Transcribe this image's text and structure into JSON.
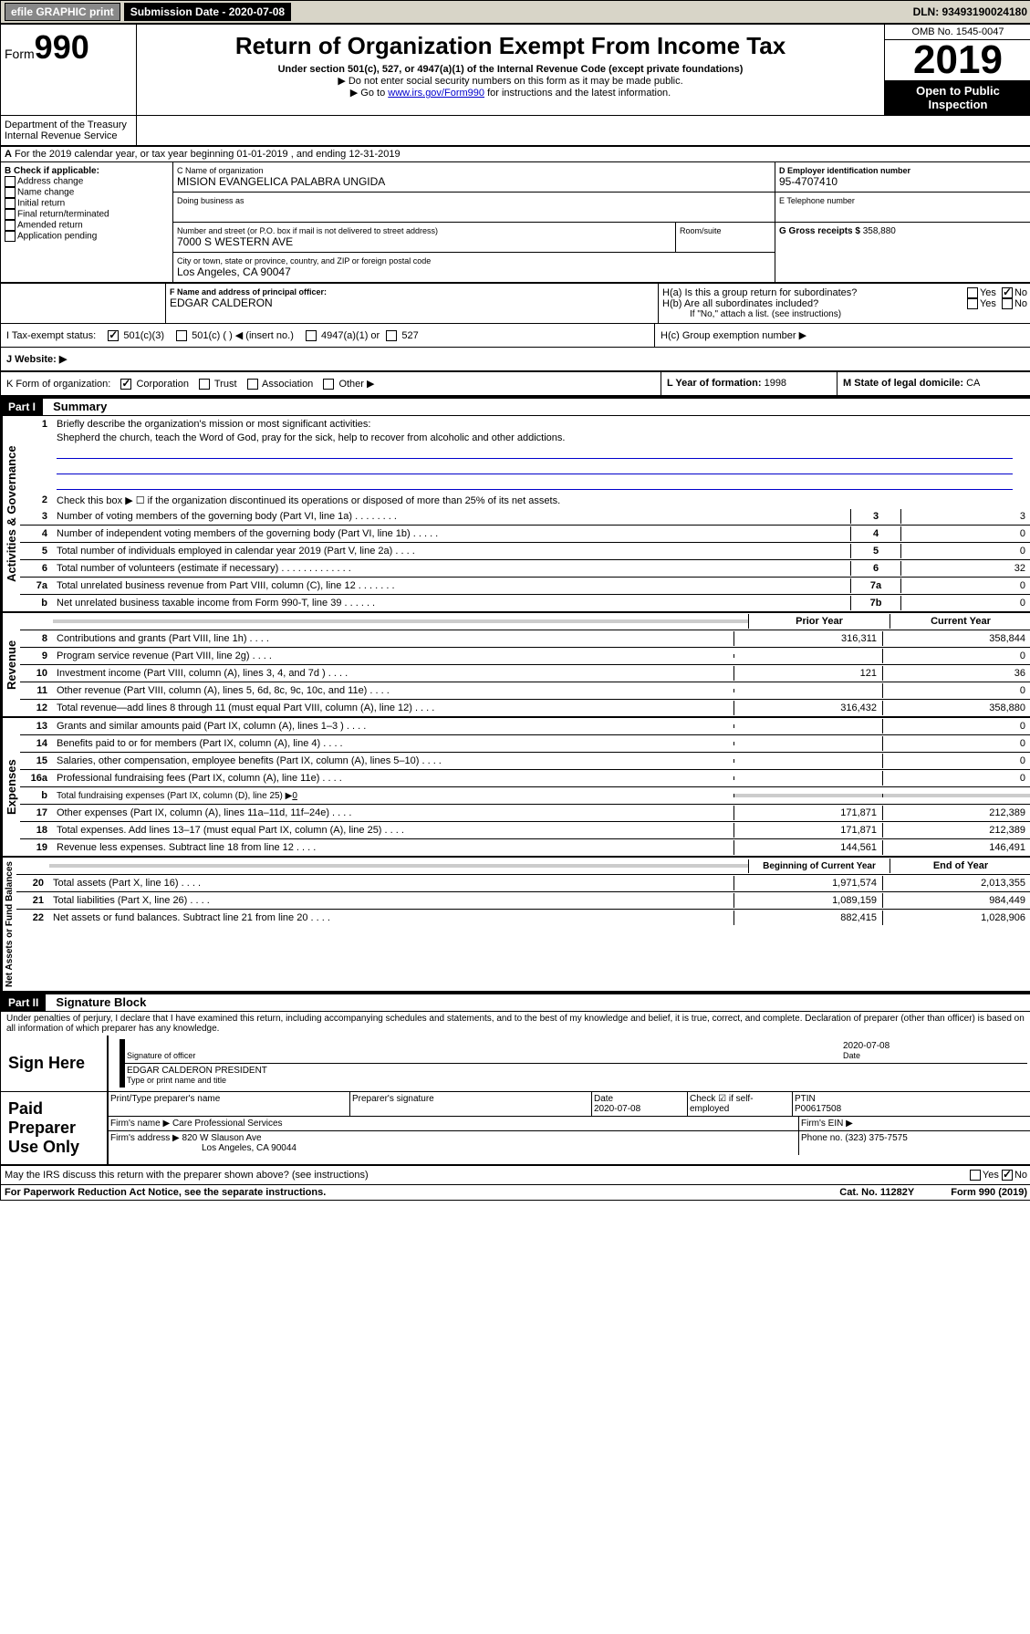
{
  "top": {
    "efile": "efile GRAPHIC print",
    "submission_label": "Submission Date - 2020-07-08",
    "dln": "DLN: 93493190024180"
  },
  "header": {
    "form_label": "Form",
    "form_num": "990",
    "title": "Return of Organization Exempt From Income Tax",
    "subtitle": "Under section 501(c), 527, or 4947(a)(1) of the Internal Revenue Code (except private foundations)",
    "note1": "▶ Do not enter social security numbers on this form as it may be made public.",
    "note2a": "▶ Go to ",
    "note2_link": "www.irs.gov/Form990",
    "note2b": " for instructions and the latest information.",
    "omb": "OMB No. 1545-0047",
    "year": "2019",
    "open": "Open to Public Inspection",
    "dept": "Department of the Treasury Internal Revenue Service"
  },
  "period": {
    "line": "For the 2019 calendar year, or tax year beginning 01-01-2019    , and ending 12-31-2019"
  },
  "boxB": {
    "label": "B Check if applicable:",
    "items": [
      "Address change",
      "Name change",
      "Initial return",
      "Final return/terminated",
      "Amended return",
      "Application pending"
    ]
  },
  "boxC": {
    "name_label": "C Name of organization",
    "name": "MISION EVANGELICA PALABRA UNGIDA",
    "dba_label": "Doing business as",
    "addr_label": "Number and street (or P.O. box if mail is not delivered to street address)",
    "room_label": "Room/suite",
    "addr": "7000 S WESTERN AVE",
    "city_label": "City or town, state or province, country, and ZIP or foreign postal code",
    "city": "Los Angeles, CA  90047"
  },
  "boxD": {
    "label": "D Employer identification number",
    "val": "95-4707410"
  },
  "boxE": {
    "label": "E Telephone number",
    "val": ""
  },
  "boxG": {
    "label": "G Gross receipts $",
    "val": "358,880"
  },
  "boxF": {
    "label": "F  Name and address of principal officer:",
    "val": "EDGAR CALDERON"
  },
  "boxH": {
    "a": "H(a)  Is this a group return for subordinates?",
    "b": "H(b)  Are all subordinates included?",
    "b_note": "If \"No,\" attach a list. (see instructions)",
    "c": "H(c)  Group exemption number ▶",
    "yes": "Yes",
    "no": "No"
  },
  "boxI": {
    "label": "I     Tax-exempt status:",
    "opts": [
      "501(c)(3)",
      "501(c) (  ) ◀ (insert no.)",
      "4947(a)(1) or",
      "527"
    ]
  },
  "boxJ": {
    "label": "J     Website: ▶"
  },
  "boxK": {
    "label": "K Form of organization:",
    "opts": [
      "Corporation",
      "Trust",
      "Association",
      "Other ▶"
    ]
  },
  "boxL": {
    "label": "L Year of formation:",
    "val": "1998"
  },
  "boxM": {
    "label": "M State of legal domicile:",
    "val": "CA"
  },
  "partI": {
    "header": "Part I",
    "title": "Summary"
  },
  "governance": {
    "label": "Activities & Governance",
    "l1": "Briefly describe the organization's mission or most significant activities:",
    "mission": "Shepherd the church, teach the Word of God, pray for the sick, help to recover from alcoholic and other addictions.",
    "l2": "Check this box ▶ ☐  if the organization discontinued its operations or disposed of more than 25% of its net assets.",
    "l3": "Number of voting members of the governing body (Part VI, line 1a)",
    "l4": "Number of independent voting members of the governing body (Part VI, line 1b)",
    "l5": "Total number of individuals employed in calendar year 2019 (Part V, line 2a)",
    "l6": "Total number of volunteers (estimate if necessary)",
    "l7a": "Total unrelated business revenue from Part VIII, column (C), line 12",
    "l7b": "Net unrelated business taxable income from Form 990-T, line 39",
    "v3": "3",
    "v4": "0",
    "v5": "0",
    "v6": "32",
    "v7a": "0",
    "v7b": "0"
  },
  "revenue": {
    "label": "Revenue",
    "prior": "Prior Year",
    "current": "Current Year",
    "rows": [
      {
        "n": "8",
        "t": "Contributions and grants (Part VIII, line 1h)",
        "p": "316,311",
        "c": "358,844"
      },
      {
        "n": "9",
        "t": "Program service revenue (Part VIII, line 2g)",
        "p": "",
        "c": "0"
      },
      {
        "n": "10",
        "t": "Investment income (Part VIII, column (A), lines 3, 4, and 7d )",
        "p": "121",
        "c": "36"
      },
      {
        "n": "11",
        "t": "Other revenue (Part VIII, column (A), lines 5, 6d, 8c, 9c, 10c, and 11e)",
        "p": "",
        "c": "0"
      },
      {
        "n": "12",
        "t": "Total revenue—add lines 8 through 11 (must equal Part VIII, column (A), line 12)",
        "p": "316,432",
        "c": "358,880"
      }
    ]
  },
  "expenses": {
    "label": "Expenses",
    "rows": [
      {
        "n": "13",
        "t": "Grants and similar amounts paid (Part IX, column (A), lines 1–3 )",
        "p": "",
        "c": "0"
      },
      {
        "n": "14",
        "t": "Benefits paid to or for members (Part IX, column (A), line 4)",
        "p": "",
        "c": "0"
      },
      {
        "n": "15",
        "t": "Salaries, other compensation, employee benefits (Part IX, column (A), lines 5–10)",
        "p": "",
        "c": "0"
      },
      {
        "n": "16a",
        "t": "Professional fundraising fees (Part IX, column (A), line 11e)",
        "p": "",
        "c": "0"
      }
    ],
    "l16b": "Total fundraising expenses (Part IX, column (D), line 25) ▶",
    "l16b_val": "0",
    "rows2": [
      {
        "n": "17",
        "t": "Other expenses (Part IX, column (A), lines 11a–11d, 11f–24e)",
        "p": "171,871",
        "c": "212,389"
      },
      {
        "n": "18",
        "t": "Total expenses. Add lines 13–17 (must equal Part IX, column (A), line 25)",
        "p": "171,871",
        "c": "212,389"
      },
      {
        "n": "19",
        "t": "Revenue less expenses. Subtract line 18 from line 12",
        "p": "144,561",
        "c": "146,491"
      }
    ]
  },
  "netassets": {
    "label": "Net Assets or Fund Balances",
    "begin": "Beginning of Current Year",
    "end": "End of Year",
    "rows": [
      {
        "n": "20",
        "t": "Total assets (Part X, line 16)",
        "p": "1,971,574",
        "c": "2,013,355"
      },
      {
        "n": "21",
        "t": "Total liabilities (Part X, line 26)",
        "p": "1,089,159",
        "c": "984,449"
      },
      {
        "n": "22",
        "t": "Net assets or fund balances. Subtract line 21 from line 20",
        "p": "882,415",
        "c": "1,028,906"
      }
    ]
  },
  "partII": {
    "header": "Part II",
    "title": "Signature Block",
    "declaration": "Under penalties of perjury, I declare that I have examined this return, including accompanying schedules and statements, and to the best of my knowledge and belief, it is true, correct, and complete. Declaration of preparer (other than officer) is based on all information of which preparer has any knowledge."
  },
  "sign": {
    "label": "Sign Here",
    "date": "2020-07-08",
    "sig_label": "Signature of officer",
    "date_label": "Date",
    "name": "EDGAR CALDERON PRESIDENT",
    "name_label": "Type or print name and title"
  },
  "paid": {
    "label": "Paid Preparer Use Only",
    "h1": "Print/Type preparer's name",
    "h2": "Preparer's signature",
    "h3": "Date",
    "h4": "Check ☑ if self-employed",
    "h5": "PTIN",
    "date": "2020-07-08",
    "ptin": "P00617508",
    "firm_label": "Firm's name    ▶",
    "firm": "Care Professional Services",
    "ein_label": "Firm's EIN ▶",
    "addr_label": "Firm's address ▶",
    "addr1": "820 W Slauson Ave",
    "addr2": "Los Angeles, CA  90044",
    "phone_label": "Phone no.",
    "phone": "(323) 375-7575"
  },
  "discuss": "May the IRS discuss this return with the preparer shown above? (see instructions)",
  "footer": {
    "left": "For Paperwork Reduction Act Notice, see the separate instructions.",
    "mid": "Cat. No. 11282Y",
    "right": "Form 990 (2019)"
  }
}
